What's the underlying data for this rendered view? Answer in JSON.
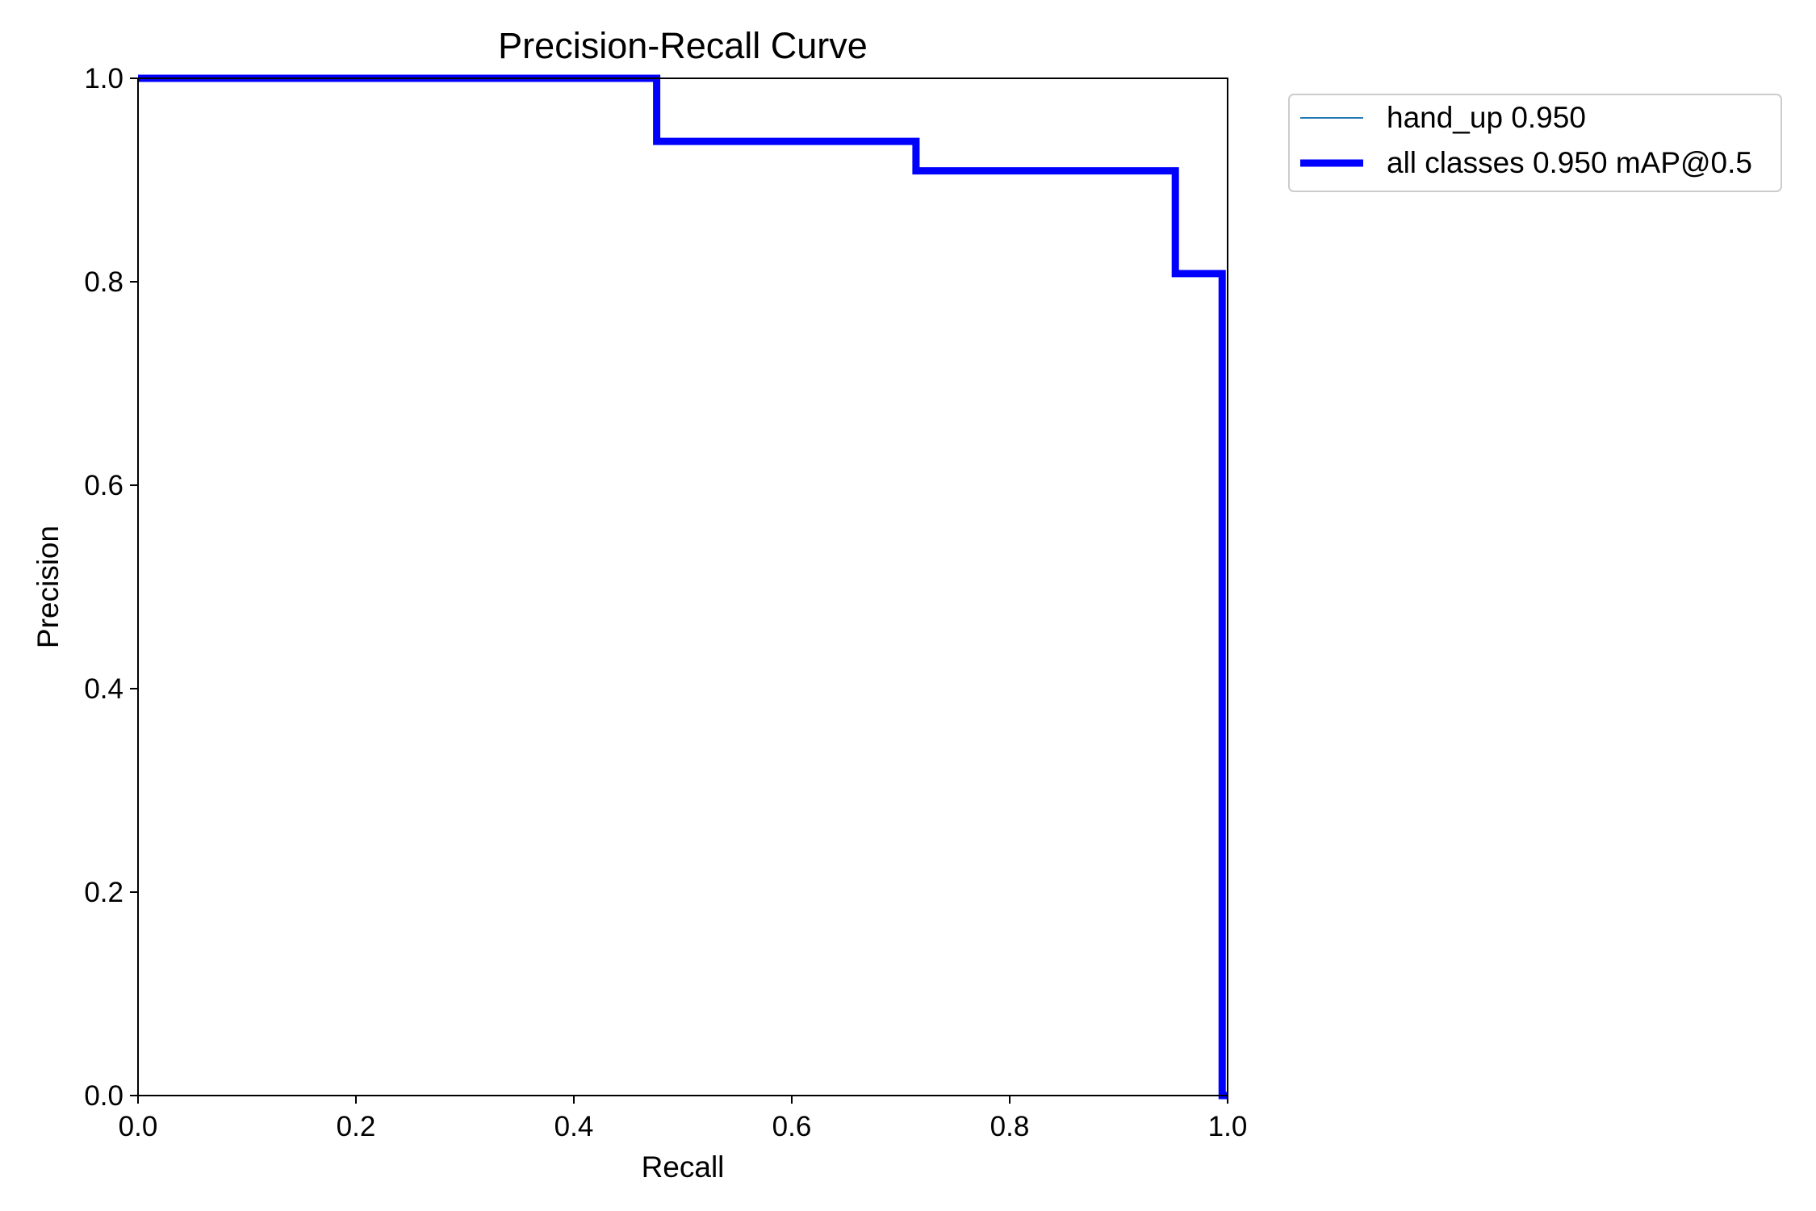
{
  "chart_data": {
    "type": "line",
    "title": "Precision-Recall Curve",
    "xlabel": "Recall",
    "ylabel": "Precision",
    "xlim": [
      0.0,
      1.0
    ],
    "ylim": [
      0.0,
      1.0
    ],
    "xticks": [
      "0.0",
      "0.2",
      "0.4",
      "0.6",
      "0.8",
      "1.0"
    ],
    "yticks": [
      "0.0",
      "0.2",
      "0.4",
      "0.6",
      "0.8",
      "1.0"
    ],
    "grid": false,
    "legend_position": "outside-top-right",
    "series": [
      {
        "name": "hand_up 0.950",
        "color": "#1f77b4",
        "style": "thin",
        "x": [
          0.0,
          0.476,
          0.476,
          0.714,
          0.714,
          0.952,
          0.952,
          0.995,
          0.995,
          1.0
        ],
        "y": [
          1.0,
          1.0,
          0.938,
          0.938,
          0.909,
          0.909,
          0.808,
          0.808,
          0.0,
          0.0
        ]
      },
      {
        "name": "all classes 0.950 mAP@0.5",
        "color": "#0000ff",
        "style": "thick",
        "x": [
          0.0,
          0.476,
          0.476,
          0.714,
          0.714,
          0.952,
          0.952,
          0.995,
          0.995,
          1.0
        ],
        "y": [
          1.0,
          1.0,
          0.938,
          0.938,
          0.909,
          0.909,
          0.808,
          0.808,
          0.0,
          0.0
        ]
      }
    ]
  }
}
